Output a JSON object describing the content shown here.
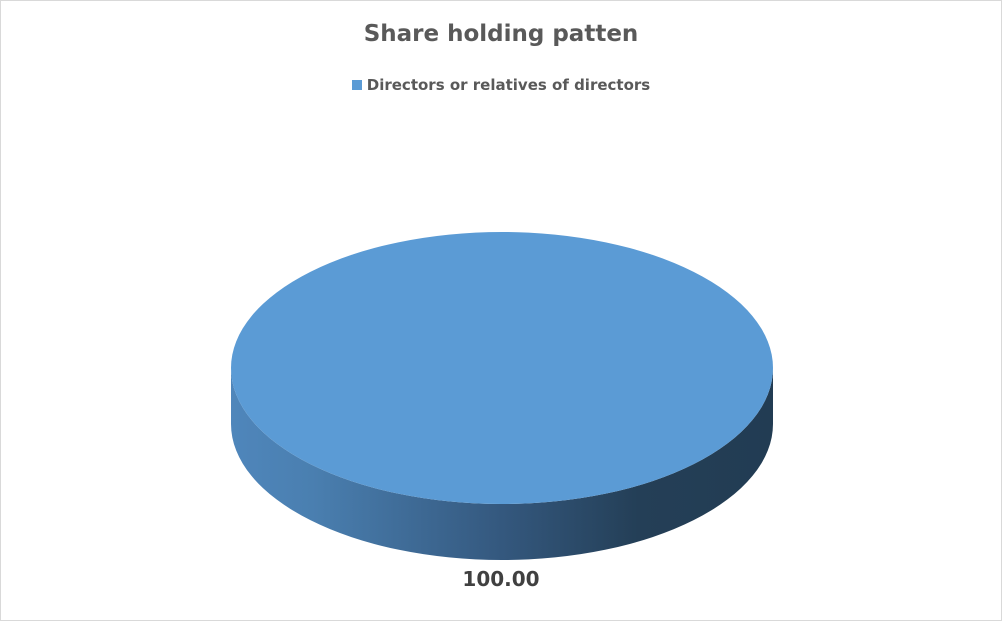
{
  "chart_data": {
    "type": "pie",
    "style": "3d",
    "title": "Share holding patten",
    "legend_position": "top",
    "categories": [
      "Directors or relatives of directors"
    ],
    "values": [
      100.0
    ],
    "data_labels": [
      "100.00"
    ],
    "colors": [
      "#5b9bd5"
    ]
  }
}
